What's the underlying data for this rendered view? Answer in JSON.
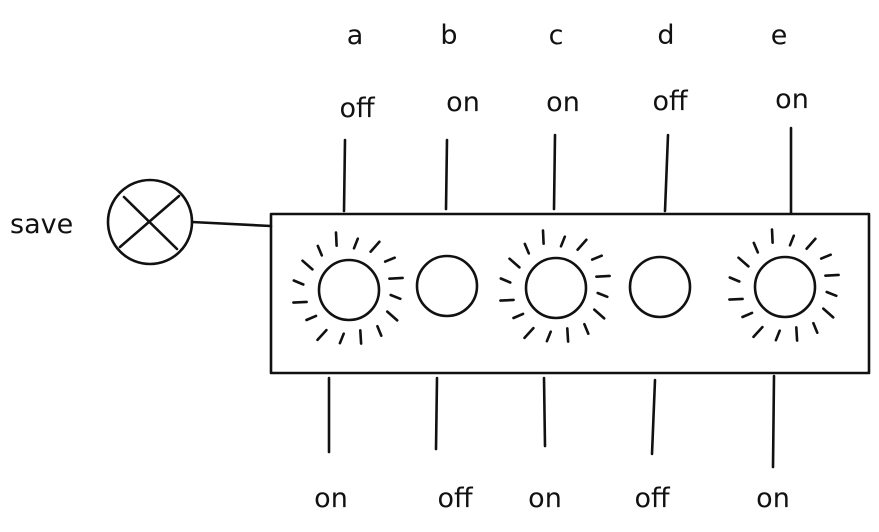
{
  "save": {
    "label": "save",
    "icon": "x-icon"
  },
  "switches": [
    {
      "name": "a",
      "top_label": "off",
      "bottom_label": "on",
      "lit": true
    },
    {
      "name": "b",
      "top_label": "on",
      "bottom_label": "off",
      "lit": false
    },
    {
      "name": "c",
      "top_label": "on",
      "bottom_label": "on",
      "lit": true
    },
    {
      "name": "d",
      "top_label": "off",
      "bottom_label": "off",
      "lit": false
    },
    {
      "name": "e",
      "top_label": "on",
      "bottom_label": "on",
      "lit": true
    }
  ]
}
